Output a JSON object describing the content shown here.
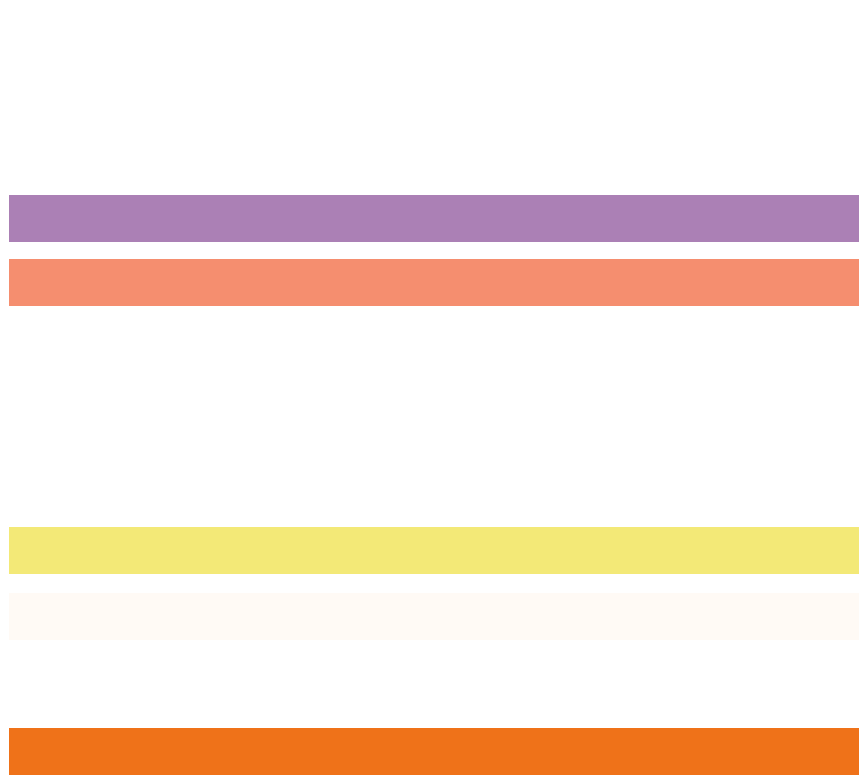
{
  "stripes": [
    {
      "color": "#ab80b5"
    },
    {
      "color": "#f58e6f"
    },
    {
      "color": "#f3e977"
    },
    {
      "color": "#fffaf5"
    },
    {
      "color": "#ef7219"
    }
  ]
}
